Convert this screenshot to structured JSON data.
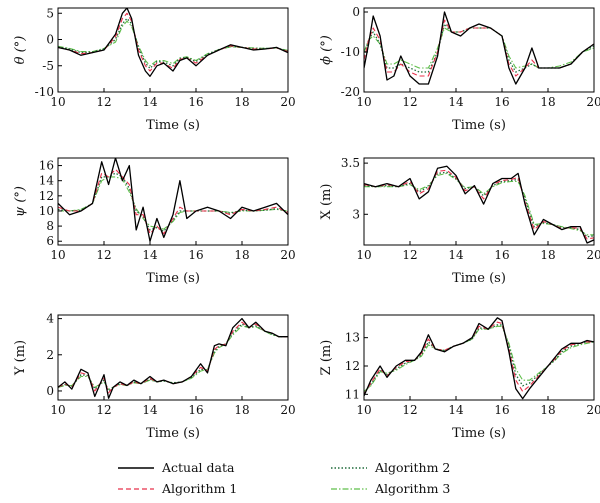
{
  "legend": {
    "placement": "bottom-center",
    "entries": [
      {
        "name": "Actual data",
        "color": "#000000",
        "style": "solid"
      },
      {
        "name": "Algorithm 1",
        "color": "#e8304a",
        "style": "dashed"
      },
      {
        "name": "Algorithm 2",
        "color": "#1f6b3a",
        "style": "dotted"
      },
      {
        "name": "Algorithm 3",
        "color": "#5fbf4a",
        "style": "dash-dot"
      }
    ]
  },
  "chart_data": [
    {
      "type": "line",
      "ylabel": "θ (°)",
      "xlabel": "Time (s)",
      "xlim": [
        10,
        20
      ],
      "ylim": [
        -10,
        6
      ],
      "xticks": [
        10,
        12,
        14,
        16,
        18,
        20
      ],
      "yticks": [
        -10,
        -5,
        0,
        5
      ],
      "x": [
        10,
        10.5,
        11,
        11.5,
        12,
        12.5,
        12.8,
        13,
        13.2,
        13.5,
        13.8,
        14,
        14.3,
        14.6,
        15,
        15.3,
        15.6,
        16,
        16.5,
        17,
        17.5,
        18,
        18.5,
        19,
        19.5,
        20
      ],
      "series": [
        {
          "name": "Actual data",
          "values": [
            -1.5,
            -2,
            -3,
            -2.5,
            -2,
            1,
            5,
            6,
            4,
            -3,
            -6,
            -7,
            -5,
            -4.5,
            -6,
            -4,
            -3.5,
            -5,
            -3,
            -2,
            -1,
            -1.5,
            -2,
            -1.8,
            -1.5,
            -2.5
          ]
        },
        {
          "name": "Algorithm 1",
          "values": [
            -1.5,
            -2,
            -2.7,
            -2.5,
            -2,
            0.5,
            4,
            5,
            3.5,
            -2,
            -5,
            -6,
            -4.5,
            -4.5,
            -5.5,
            -3.8,
            -3.5,
            -4.5,
            -3,
            -2,
            -1.2,
            -1.5,
            -1.8,
            -1.8,
            -1.6,
            -2.3
          ]
        },
        {
          "name": "Algorithm 2",
          "values": [
            -1.4,
            -1.8,
            -2.5,
            -2.4,
            -1.8,
            0,
            3,
            4,
            3,
            -1.5,
            -4.5,
            -5.5,
            -4.2,
            -4.3,
            -5,
            -3.6,
            -3.4,
            -4.2,
            -2.8,
            -1.9,
            -1.3,
            -1.5,
            -1.7,
            -1.7,
            -1.6,
            -2.2
          ]
        },
        {
          "name": "Algorithm 3",
          "values": [
            -1.3,
            -1.7,
            -2.3,
            -2.3,
            -1.7,
            -0.5,
            2.5,
            3.5,
            2.5,
            -1.2,
            -4,
            -5,
            -4,
            -4,
            -4.6,
            -3.5,
            -3.3,
            -4,
            -2.7,
            -1.9,
            -1.4,
            -1.5,
            -1.6,
            -1.7,
            -1.6,
            -2.1
          ]
        }
      ]
    },
    {
      "type": "line",
      "ylabel": "ϕ (°)",
      "xlabel": "Time (s)",
      "xlim": [
        10,
        20
      ],
      "ylim": [
        -20,
        1
      ],
      "xticks": [
        10,
        12,
        14,
        16,
        18,
        20
      ],
      "yticks": [
        -20,
        -10,
        0
      ],
      "x": [
        10,
        10.2,
        10.4,
        10.7,
        11,
        11.3,
        11.6,
        12,
        12.4,
        12.8,
        13.2,
        13.5,
        13.8,
        14.2,
        14.6,
        15,
        15.5,
        16,
        16.3,
        16.6,
        17,
        17.3,
        17.6,
        18,
        18.5,
        19,
        19.5,
        20
      ],
      "series": [
        {
          "name": "Actual data",
          "values": [
            -14,
            -8,
            -1,
            -6,
            -17,
            -16,
            -11,
            -16,
            -18,
            -18,
            -11,
            0,
            -5,
            -6,
            -4,
            -3,
            -4,
            -6,
            -14,
            -18,
            -14,
            -9,
            -14,
            -14,
            -14,
            -13,
            -10,
            -8
          ]
        },
        {
          "name": "Algorithm 1",
          "values": [
            -12,
            -7,
            -4,
            -7,
            -15,
            -15,
            -13,
            -15,
            -16,
            -16,
            -10,
            -2,
            -5,
            -5,
            -4,
            -4,
            -4,
            -6,
            -13,
            -16,
            -14,
            -12,
            -14,
            -14,
            -14,
            -13,
            -10,
            -8
          ]
        },
        {
          "name": "Algorithm 2",
          "values": [
            -11,
            -7,
            -5,
            -8,
            -14,
            -14,
            -13,
            -14,
            -15,
            -15,
            -10,
            -3,
            -5,
            -5,
            -4,
            -4,
            -4,
            -6,
            -12,
            -15,
            -14,
            -13,
            -14,
            -14,
            -14,
            -13,
            -10,
            -8.5
          ]
        },
        {
          "name": "Algorithm 3",
          "values": [
            -10,
            -7,
            -6,
            -8,
            -13,
            -13,
            -12,
            -13,
            -14,
            -14,
            -9,
            -4,
            -5,
            -5,
            -4,
            -4,
            -4,
            -6,
            -11,
            -14,
            -13.5,
            -13,
            -14,
            -14,
            -13.5,
            -12.5,
            -10,
            -9
          ]
        }
      ]
    },
    {
      "type": "line",
      "ylabel": "ψ (°)",
      "xlabel": "Time (s)",
      "xlim": [
        10,
        20
      ],
      "ylim": [
        5.5,
        17
      ],
      "xticks": [
        10,
        12,
        14,
        16,
        18,
        20
      ],
      "yticks": [
        6,
        8,
        10,
        12,
        14,
        16
      ],
      "x": [
        10,
        10.5,
        11,
        11.5,
        11.9,
        12.2,
        12.5,
        12.8,
        13.1,
        13.4,
        13.7,
        14,
        14.3,
        14.6,
        15,
        15.3,
        15.6,
        16,
        16.5,
        17,
        17.5,
        18,
        18.5,
        19,
        19.5,
        20
      ],
      "series": [
        {
          "name": "Actual data",
          "values": [
            11,
            9.5,
            10,
            11,
            16.5,
            13.5,
            17,
            14,
            16,
            7.5,
            10.5,
            6,
            9,
            6.5,
            9.5,
            14,
            9,
            10,
            10.5,
            10,
            9,
            10.5,
            10,
            10.5,
            11,
            9.5
          ]
        },
        {
          "name": "Algorithm 1",
          "values": [
            10.5,
            10,
            10,
            11,
            15,
            14.5,
            15.5,
            14.5,
            13.5,
            9.5,
            9.5,
            7,
            8,
            7,
            9,
            10.5,
            10,
            10,
            10,
            10,
            9.5,
            10.2,
            10,
            10.2,
            10.5,
            9.8
          ]
        },
        {
          "name": "Algorithm 2",
          "values": [
            10.2,
            10,
            10.1,
            11,
            14.5,
            14.5,
            15,
            14.5,
            13,
            10,
            9.2,
            7.5,
            7.8,
            7.3,
            8.8,
            10,
            10,
            10,
            10,
            10,
            9.7,
            10.1,
            10,
            10.1,
            10.3,
            9.9
          ]
        },
        {
          "name": "Algorithm 3",
          "values": [
            10,
            10,
            10.2,
            11,
            14,
            14.5,
            14.5,
            14.2,
            12.5,
            10.3,
            9,
            8,
            7.8,
            7.6,
            8.6,
            9.8,
            10,
            10,
            10,
            10,
            9.8,
            10,
            10,
            10.1,
            10.2,
            10
          ]
        }
      ]
    },
    {
      "type": "line",
      "ylabel": "X (m)",
      "xlabel": "Time (s)",
      "xlim": [
        10,
        20
      ],
      "ylim": [
        2.7,
        3.55
      ],
      "xticks": [
        10,
        12,
        14,
        16,
        18,
        20
      ],
      "yticks": [
        3,
        3.5
      ],
      "x": [
        10,
        10.5,
        11,
        11.5,
        12,
        12.4,
        12.8,
        13.2,
        13.6,
        14,
        14.4,
        14.8,
        15.2,
        15.6,
        16,
        16.4,
        16.7,
        17,
        17.4,
        17.8,
        18.2,
        18.6,
        19,
        19.4,
        19.7,
        20
      ],
      "series": [
        {
          "name": "Actual data",
          "values": [
            3.3,
            3.27,
            3.3,
            3.27,
            3.35,
            3.15,
            3.22,
            3.45,
            3.47,
            3.38,
            3.2,
            3.28,
            3.1,
            3.3,
            3.35,
            3.35,
            3.4,
            3.1,
            2.8,
            2.95,
            2.9,
            2.85,
            2.88,
            2.88,
            2.72,
            2.75
          ]
        },
        {
          "name": "Algorithm 1",
          "values": [
            3.29,
            3.27,
            3.29,
            3.27,
            3.32,
            3.2,
            3.25,
            3.42,
            3.43,
            3.36,
            3.23,
            3.27,
            3.15,
            3.29,
            3.33,
            3.34,
            3.36,
            3.12,
            2.85,
            2.93,
            2.9,
            2.86,
            2.87,
            2.86,
            2.76,
            2.77
          ]
        },
        {
          "name": "Algorithm 2",
          "values": [
            3.28,
            3.27,
            3.28,
            3.27,
            3.3,
            3.22,
            3.27,
            3.4,
            3.41,
            3.35,
            3.25,
            3.27,
            3.18,
            3.28,
            3.32,
            3.33,
            3.34,
            3.15,
            2.88,
            2.92,
            2.9,
            2.87,
            2.87,
            2.85,
            2.78,
            2.79
          ]
        },
        {
          "name": "Algorithm 3",
          "values": [
            3.27,
            3.27,
            3.27,
            3.27,
            3.29,
            3.24,
            3.28,
            3.38,
            3.4,
            3.34,
            3.26,
            3.27,
            3.2,
            3.27,
            3.31,
            3.32,
            3.32,
            3.18,
            2.9,
            2.91,
            2.9,
            2.88,
            2.86,
            2.84,
            2.8,
            2.8
          ]
        }
      ]
    },
    {
      "type": "line",
      "ylabel": "Y (m)",
      "xlabel": "Time (s)",
      "xlim": [
        10,
        20
      ],
      "ylim": [
        -0.5,
        4.2
      ],
      "xticks": [
        10,
        12,
        14,
        16,
        18,
        20
      ],
      "yticks": [
        0,
        2,
        4
      ],
      "x": [
        10,
        10.3,
        10.6,
        11,
        11.3,
        11.6,
        12,
        12.2,
        12.4,
        12.7,
        13,
        13.3,
        13.6,
        14,
        14.3,
        14.6,
        15,
        15.4,
        15.8,
        16.2,
        16.5,
        16.8,
        17,
        17.3,
        17.6,
        18,
        18.3,
        18.6,
        19,
        19.3,
        19.6,
        20
      ],
      "series": [
        {
          "name": "Actual data",
          "values": [
            0.2,
            0.5,
            0.1,
            1.2,
            1.0,
            -0.3,
            0.9,
            -0.4,
            0.2,
            0.5,
            0.3,
            0.6,
            0.4,
            0.8,
            0.5,
            0.6,
            0.4,
            0.5,
            0.8,
            1.5,
            1.0,
            2.5,
            2.6,
            2.5,
            3.5,
            4.0,
            3.5,
            3.8,
            3.3,
            3.2,
            3.0,
            3.0
          ]
        },
        {
          "name": "Algorithm 1",
          "values": [
            0.2,
            0.4,
            0.2,
            1.0,
            0.9,
            0,
            0.7,
            -0.1,
            0.2,
            0.4,
            0.3,
            0.5,
            0.4,
            0.7,
            0.5,
            0.6,
            0.4,
            0.5,
            0.8,
            1.3,
            1.1,
            2.3,
            2.5,
            2.6,
            3.3,
            3.8,
            3.5,
            3.7,
            3.3,
            3.2,
            3.0,
            3.0
          ]
        },
        {
          "name": "Algorithm 2",
          "values": [
            0.2,
            0.35,
            0.25,
            0.9,
            0.85,
            0.1,
            0.6,
            0,
            0.2,
            0.4,
            0.3,
            0.5,
            0.4,
            0.65,
            0.5,
            0.55,
            0.45,
            0.5,
            0.75,
            1.2,
            1.15,
            2.2,
            2.45,
            2.6,
            3.2,
            3.7,
            3.5,
            3.6,
            3.3,
            3.15,
            3.0,
            3.0
          ]
        },
        {
          "name": "Algorithm 3",
          "values": [
            0.2,
            0.3,
            0.3,
            0.8,
            0.8,
            0.2,
            0.5,
            0.1,
            0.2,
            0.35,
            0.3,
            0.45,
            0.4,
            0.6,
            0.5,
            0.55,
            0.45,
            0.5,
            0.7,
            1.1,
            1.2,
            2.1,
            2.4,
            2.6,
            3.1,
            3.6,
            3.5,
            3.55,
            3.3,
            3.1,
            3.0,
            3.0
          ]
        }
      ]
    },
    {
      "type": "line",
      "ylabel": "Z (m)",
      "xlabel": "Time (s)",
      "xlim": [
        10,
        20
      ],
      "ylim": [
        10.8,
        13.8
      ],
      "xticks": [
        10,
        12,
        14,
        16,
        18,
        20
      ],
      "yticks": [
        11,
        12,
        13
      ],
      "x": [
        10,
        10.3,
        10.7,
        11,
        11.4,
        11.8,
        12.2,
        12.5,
        12.8,
        13.1,
        13.5,
        13.9,
        14.3,
        14.7,
        15,
        15.4,
        15.8,
        16,
        16.3,
        16.6,
        16.9,
        17.2,
        17.6,
        18,
        18.3,
        18.6,
        19,
        19.4,
        19.7,
        20
      ],
      "series": [
        {
          "name": "Actual data",
          "values": [
            10.95,
            11.5,
            12.0,
            11.6,
            12.0,
            12.2,
            12.2,
            12.5,
            13.1,
            12.6,
            12.5,
            12.7,
            12.8,
            13.0,
            13.5,
            13.3,
            13.7,
            13.6,
            12.5,
            11.2,
            10.85,
            11.2,
            11.6,
            12.0,
            12.3,
            12.6,
            12.8,
            12.8,
            12.9,
            12.85
          ]
        },
        {
          "name": "Algorithm 1",
          "values": [
            11.0,
            11.4,
            11.9,
            11.65,
            11.95,
            12.15,
            12.2,
            12.45,
            12.95,
            12.6,
            12.55,
            12.7,
            12.8,
            13.0,
            13.4,
            13.3,
            13.55,
            13.5,
            12.6,
            11.5,
            11.1,
            11.3,
            11.65,
            12.0,
            12.25,
            12.55,
            12.75,
            12.8,
            12.85,
            12.85
          ]
        },
        {
          "name": "Algorithm 2",
          "values": [
            11.05,
            11.35,
            11.85,
            11.7,
            11.9,
            12.1,
            12.2,
            12.4,
            12.85,
            12.6,
            12.55,
            12.7,
            12.8,
            12.95,
            13.35,
            13.3,
            13.45,
            13.45,
            12.7,
            11.7,
            11.3,
            11.4,
            11.7,
            12.0,
            12.2,
            12.5,
            12.7,
            12.8,
            12.85,
            12.85
          ]
        },
        {
          "name": "Algorithm 3",
          "values": [
            11.1,
            11.3,
            11.8,
            11.75,
            11.85,
            12.05,
            12.2,
            12.35,
            12.75,
            12.6,
            12.55,
            12.7,
            12.8,
            12.95,
            13.3,
            13.3,
            13.4,
            13.4,
            12.8,
            11.9,
            11.5,
            11.5,
            11.75,
            12.0,
            12.2,
            12.45,
            12.65,
            12.75,
            12.8,
            12.85
          ]
        }
      ]
    }
  ]
}
